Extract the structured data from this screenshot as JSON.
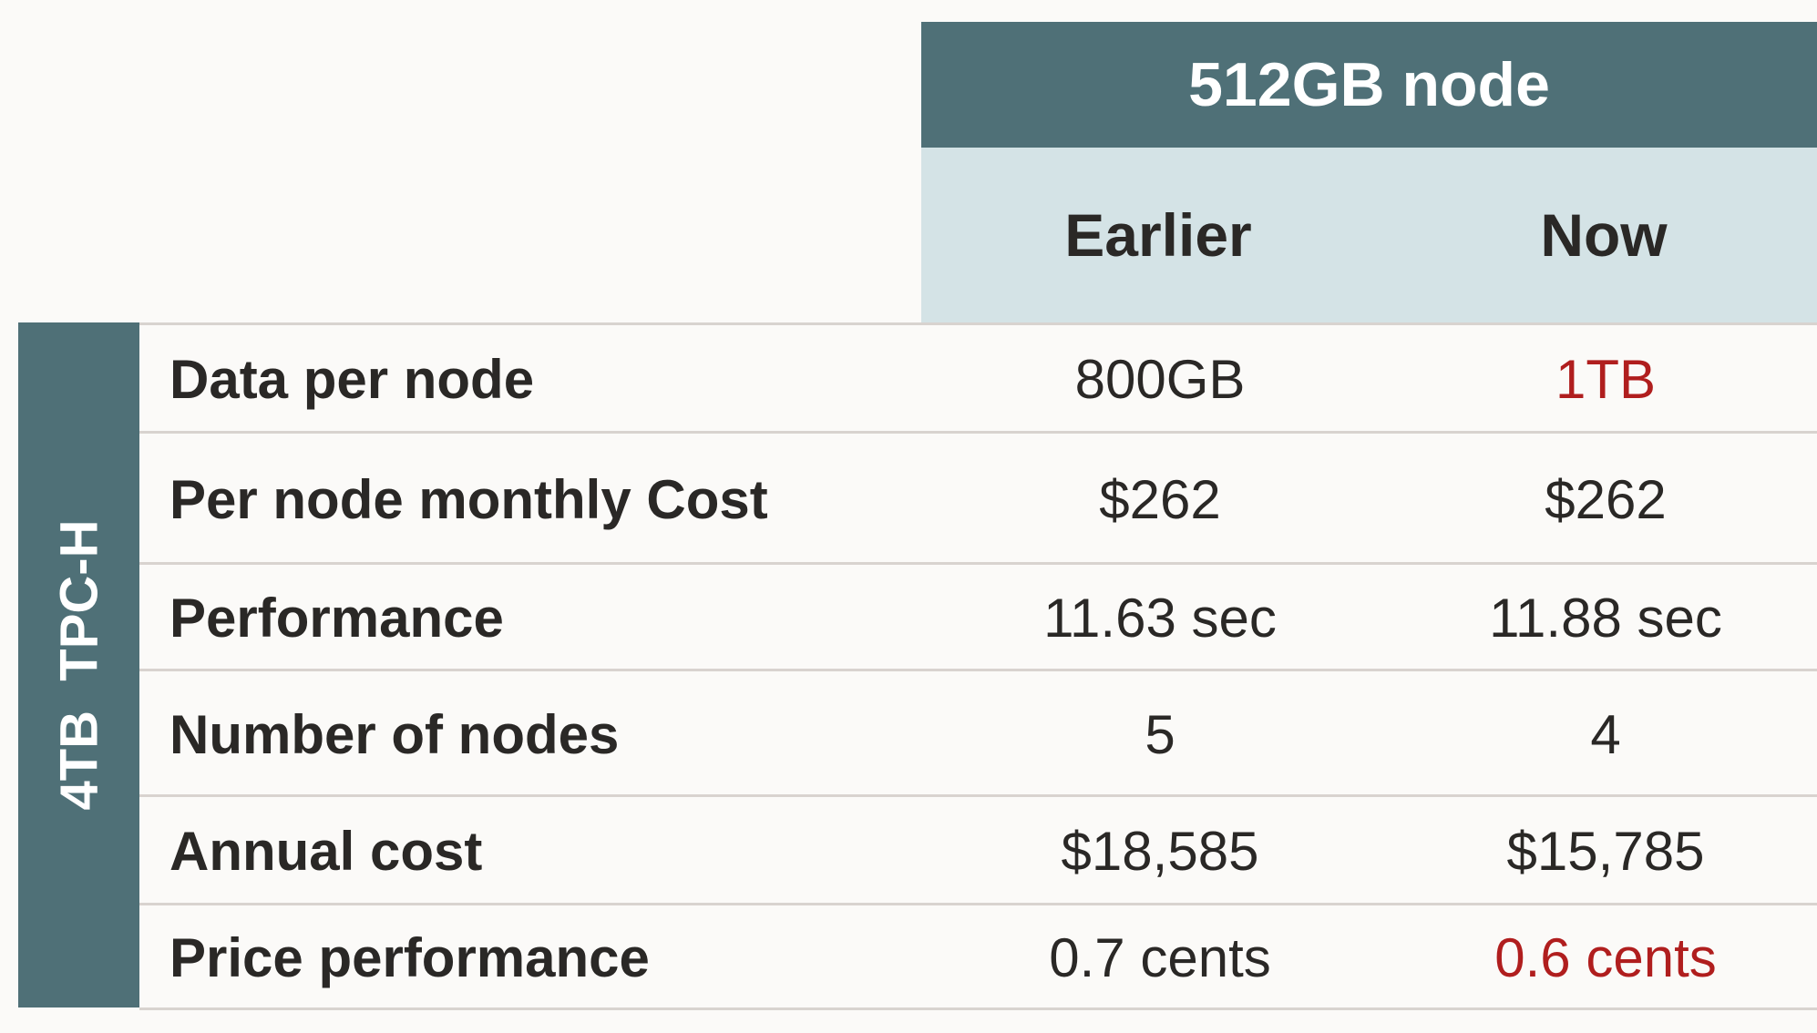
{
  "header": {
    "group": "512GB node",
    "columns": [
      "Earlier",
      "Now"
    ]
  },
  "side_label": "4TB  TPC-H",
  "highlight_color": "#b01e1e",
  "rows": [
    {
      "label": "Data per node",
      "earlier": "800GB",
      "now": "1TB",
      "now_highlight": true
    },
    {
      "label": "Per node monthly Cost",
      "earlier": "$262",
      "now": "$262",
      "now_highlight": false
    },
    {
      "label": "Performance",
      "earlier": "11.63 sec",
      "now": "11.88 sec",
      "now_highlight": false
    },
    {
      "label": "Number of nodes",
      "earlier": "5",
      "now": "4",
      "now_highlight": false
    },
    {
      "label": "Annual cost",
      "earlier": "$18,585",
      "now": "$15,785",
      "now_highlight": false
    },
    {
      "label": "Price performance",
      "earlier": "0.7 cents",
      "now": "0.6 cents",
      "now_highlight": true
    }
  ]
}
